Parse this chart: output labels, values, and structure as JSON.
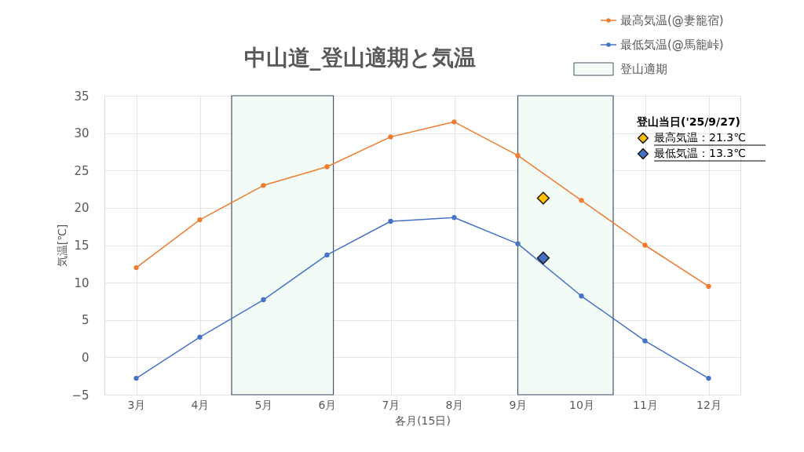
{
  "chart_data": {
    "type": "line",
    "title": "中山道_登山適期と気温",
    "xlabel": "各月(15日)",
    "ylabel": "気温[℃]",
    "x": [
      3,
      4,
      5,
      6,
      7,
      8,
      9,
      10,
      11,
      12
    ],
    "xlim": [
      2.5,
      12.5
    ],
    "xticks": [
      {
        "value": 3,
        "label": "3月"
      },
      {
        "value": 4,
        "label": "4月"
      },
      {
        "value": 5,
        "label": "5月"
      },
      {
        "value": 6,
        "label": "6月"
      },
      {
        "value": 7,
        "label": "7月"
      },
      {
        "value": 8,
        "label": "8月"
      },
      {
        "value": 9,
        "label": "9月"
      },
      {
        "value": 10,
        "label": "10月"
      },
      {
        "value": 11,
        "label": "11月"
      },
      {
        "value": 12,
        "label": "12月"
      }
    ],
    "ylim": [
      -5,
      35
    ],
    "yticks": [
      -5,
      0,
      5,
      10,
      15,
      20,
      25,
      30,
      35
    ],
    "series": [
      {
        "name": "最高気温(@妻籠宿)",
        "color": "#ed7d31",
        "values": [
          12,
          18.4,
          23,
          25.5,
          29.5,
          31.5,
          27,
          21,
          15,
          9.5
        ]
      },
      {
        "name": "最低気温(@馬籠峠)",
        "color": "#4472c4",
        "values": [
          -2.8,
          2.7,
          7.7,
          13.7,
          18.2,
          18.7,
          15.2,
          8.2,
          2.2,
          -2.8
        ]
      },
      {
        "type": "scatter",
        "marker": "diamond",
        "name": "最高気温：21.3℃",
        "color": "#ffc000",
        "x": [
          9.4
        ],
        "values": [
          21.3
        ]
      },
      {
        "type": "scatter",
        "marker": "diamond",
        "name": "最低気温：13.3℃",
        "color": "#4472c4",
        "x": [
          9.4
        ],
        "values": [
          13.3
        ]
      }
    ],
    "bands": [
      {
        "axis": "x",
        "from": 4.5,
        "to": 6.1,
        "label": "登山適期",
        "color": "#f2fbf5"
      },
      {
        "axis": "x",
        "from": 9.0,
        "to": 10.5,
        "color": "#f2fbf5"
      }
    ],
    "legend_title": "登山当日('25/9/27)",
    "grid": true,
    "legend": "top right",
    "marker": "circle",
    "line_style": "solid"
  }
}
